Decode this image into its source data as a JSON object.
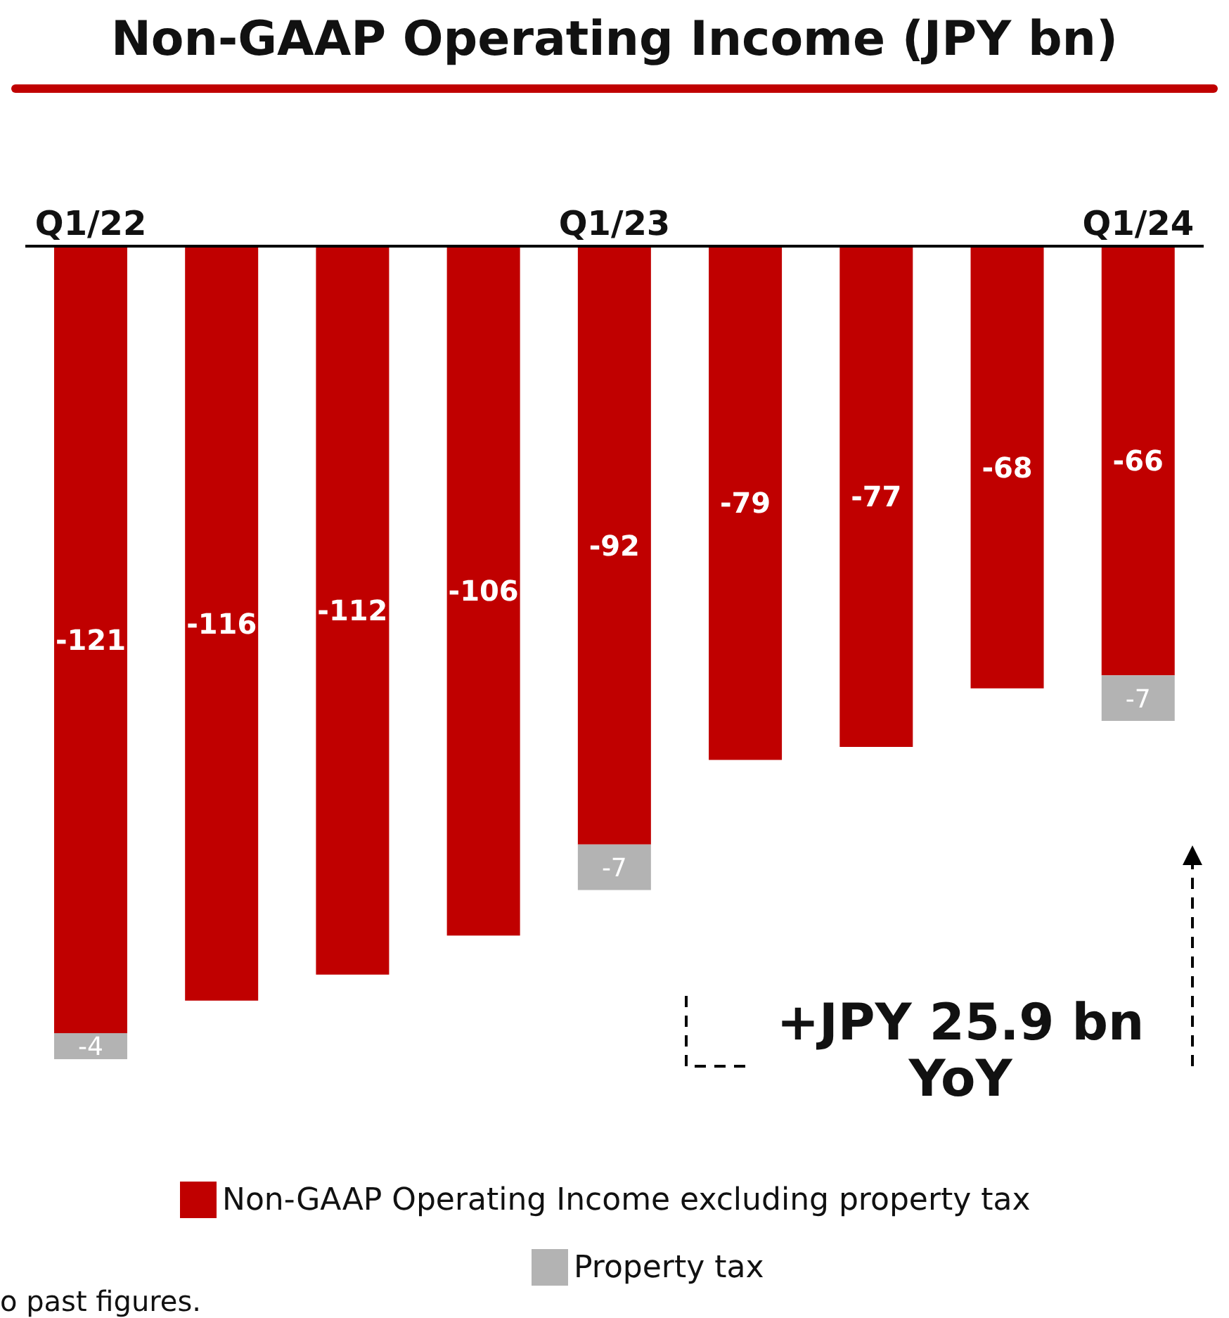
{
  "chart_data": {
    "type": "bar",
    "title": "Non-GAAP Operating Income (JPY bn)",
    "categories": [
      "Q1/22",
      null,
      null,
      null,
      "Q1/23",
      null,
      null,
      null,
      "Q1/24"
    ],
    "stacked": true,
    "data_labels": true,
    "legend": "bottom",
    "grid": false,
    "series": [
      {
        "name": "Non-GAAP Operating Income excluding property tax",
        "color": "#c00000",
        "values": [
          -121,
          -116,
          -112,
          -106,
          -92,
          -79,
          -77,
          -68,
          -66
        ]
      },
      {
        "name": "Property tax",
        "color": "#b3b3b3",
        "values": [
          -4,
          null,
          null,
          null,
          -7,
          null,
          null,
          null,
          -7
        ]
      }
    ],
    "annotations": [
      "+JPY 25.9 bn\nYoY",
      "o past figures."
    ]
  }
}
